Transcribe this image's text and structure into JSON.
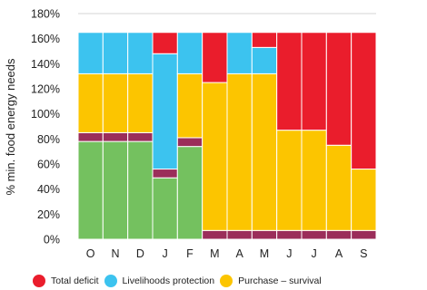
{
  "chart_data": {
    "type": "bar",
    "stacked": true,
    "categories": [
      "O",
      "N",
      "D",
      "J",
      "F",
      "M",
      "A",
      "M",
      "J",
      "J",
      "A",
      "S"
    ],
    "ylabel": "% min. food energy needs",
    "ylim": [
      0,
      180
    ],
    "yticks": [
      0,
      20,
      40,
      60,
      80,
      100,
      120,
      140,
      160,
      180
    ],
    "ytick_labels": [
      "0%",
      "20%",
      "40%",
      "60%",
      "80%",
      "100%",
      "120%",
      "140%",
      "160%",
      "180%"
    ],
    "grid": true,
    "legend_position": "bottom",
    "series": [
      {
        "key": "own",
        "color": "#74c15f",
        "values": [
          78,
          78,
          78,
          49,
          74,
          0,
          0,
          0,
          0,
          0,
          0,
          0
        ]
      },
      {
        "key": "other",
        "color": "#9b2e5a",
        "values": [
          7,
          7,
          7,
          7,
          7,
          7,
          7,
          7,
          7,
          7,
          7,
          7
        ]
      },
      {
        "name": "Purchase – survival",
        "color": "#fcc500",
        "values": [
          47,
          47,
          47,
          0,
          51,
          118,
          125,
          125,
          80,
          80,
          68,
          49
        ]
      },
      {
        "name": "Livelihoods protection",
        "color": "#3cc3ef",
        "values": [
          33,
          33,
          33,
          92,
          33,
          0,
          33,
          21,
          0,
          0,
          0,
          0
        ]
      },
      {
        "name": "Total deficit",
        "color": "#ea1d2c",
        "values": [
          0,
          0,
          0,
          17,
          0,
          40,
          0,
          12,
          78,
          78,
          90,
          109
        ]
      }
    ],
    "legend": [
      {
        "label": "Total deficit",
        "color": "#ea1d2c"
      },
      {
        "label": "Livelihoods protection",
        "color": "#3cc3ef"
      },
      {
        "label": "Purchase – survival",
        "color": "#fcc500"
      }
    ]
  }
}
